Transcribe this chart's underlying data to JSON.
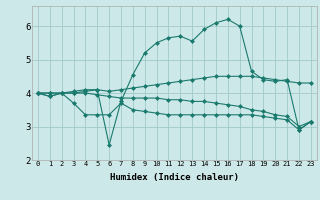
{
  "background_color": "#cde8e8",
  "grid_color": "#a0c8c8",
  "line_color": "#1a7a6e",
  "xlabel": "Humidex (Indice chaleur)",
  "xlim": [
    -0.5,
    23.5
  ],
  "ylim": [
    2,
    6.6
  ],
  "yticks": [
    2,
    3,
    4,
    5,
    6
  ],
  "xticks": [
    0,
    1,
    2,
    3,
    4,
    5,
    6,
    7,
    8,
    9,
    10,
    11,
    12,
    13,
    14,
    15,
    16,
    17,
    18,
    19,
    20,
    21,
    22,
    23
  ],
  "xtick_labels": [
    "0",
    "1",
    "2",
    "3",
    "4",
    "5",
    "6",
    "7",
    "8",
    "9",
    "10",
    "11",
    "12",
    "13",
    "14",
    "15",
    "16",
    "17",
    "18",
    "19",
    "20",
    "21",
    "22",
    "23"
  ],
  "line1_x": [
    0,
    1,
    2,
    3,
    4,
    5,
    6,
    7,
    8,
    9,
    10,
    11,
    12,
    13,
    14,
    15,
    16,
    17,
    18,
    19,
    20,
    21,
    22,
    23
  ],
  "line1_y": [
    4.0,
    3.9,
    4.0,
    4.0,
    4.05,
    4.1,
    2.45,
    3.75,
    4.55,
    5.2,
    5.5,
    5.65,
    5.7,
    5.55,
    5.9,
    6.1,
    6.2,
    6.0,
    4.65,
    4.4,
    4.35,
    4.4,
    2.9,
    3.15
  ],
  "line2_x": [
    0,
    1,
    2,
    3,
    4,
    5,
    6,
    7,
    8,
    9,
    10,
    11,
    12,
    13,
    14,
    15,
    16,
    17,
    18,
    19,
    20,
    21,
    22,
    23
  ],
  "line2_y": [
    4.0,
    4.0,
    4.0,
    4.05,
    4.1,
    4.1,
    4.05,
    4.1,
    4.15,
    4.2,
    4.25,
    4.3,
    4.35,
    4.4,
    4.45,
    4.5,
    4.5,
    4.5,
    4.5,
    4.45,
    4.4,
    4.35,
    4.3,
    4.3
  ],
  "line3_x": [
    0,
    1,
    2,
    3,
    4,
    5,
    6,
    7,
    8,
    9,
    10,
    11,
    12,
    13,
    14,
    15,
    16,
    17,
    18,
    19,
    20,
    21,
    22,
    23
  ],
  "line3_y": [
    4.0,
    4.0,
    4.0,
    4.0,
    4.0,
    3.95,
    3.9,
    3.85,
    3.85,
    3.85,
    3.85,
    3.8,
    3.8,
    3.75,
    3.75,
    3.7,
    3.65,
    3.6,
    3.5,
    3.45,
    3.35,
    3.3,
    3.0,
    3.15
  ],
  "line4_x": [
    0,
    1,
    2,
    3,
    4,
    5,
    6,
    7,
    8,
    9,
    10,
    11,
    12,
    13,
    14,
    15,
    16,
    17,
    18,
    19,
    20,
    21,
    22,
    23
  ],
  "line4_y": [
    4.0,
    3.9,
    4.0,
    3.7,
    3.35,
    3.35,
    3.35,
    3.7,
    3.5,
    3.45,
    3.4,
    3.35,
    3.35,
    3.35,
    3.35,
    3.35,
    3.35,
    3.35,
    3.35,
    3.3,
    3.25,
    3.2,
    2.9,
    3.15
  ]
}
